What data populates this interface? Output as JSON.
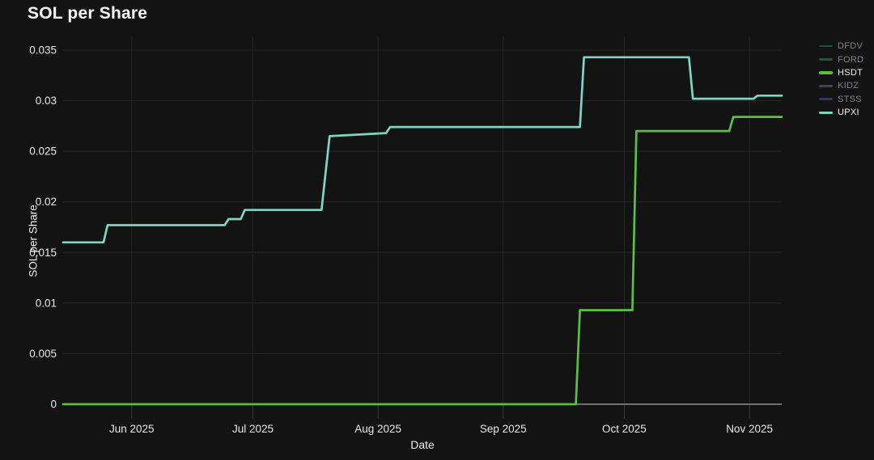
{
  "title": "SOL per Share",
  "axes": {
    "y_title": "SOL per Share",
    "x_title": "Date",
    "y_ticks": [
      {
        "value": 0,
        "label": "0"
      },
      {
        "value": 0.005,
        "label": "0.005"
      },
      {
        "value": 0.01,
        "label": "0.01"
      },
      {
        "value": 0.015,
        "label": "0.015"
      },
      {
        "value": 0.02,
        "label": "0.02"
      },
      {
        "value": 0.025,
        "label": "0.025"
      },
      {
        "value": 0.03,
        "label": "0.03"
      },
      {
        "value": 0.035,
        "label": "0.035"
      }
    ],
    "x_ticks": [
      {
        "date": "2025-06-01",
        "label": "Jun 2025"
      },
      {
        "date": "2025-07-01",
        "label": "Jul 2025"
      },
      {
        "date": "2025-08-01",
        "label": "Aug 2025"
      },
      {
        "date": "2025-09-01",
        "label": "Sep 2025"
      },
      {
        "date": "2025-10-01",
        "label": "Oct 2025"
      },
      {
        "date": "2025-11-01",
        "label": "Nov 2025"
      }
    ]
  },
  "chart_data": {
    "type": "line",
    "title": "SOL per Share",
    "xlabel": "Date",
    "ylabel": "SOL per Share",
    "x_range": [
      "2025-05-15",
      "2025-11-09"
    ],
    "ylim": [
      0,
      0.035
    ],
    "grid": true,
    "legend_position": "top-right",
    "series": [
      {
        "name": "HSDT",
        "color": "#5abf43",
        "visible": true,
        "points": [
          [
            "2025-05-15",
            0
          ],
          [
            "2025-09-19",
            0
          ],
          [
            "2025-09-20",
            0.0093
          ],
          [
            "2025-10-03",
            0.0093
          ],
          [
            "2025-10-04",
            0.027
          ],
          [
            "2025-10-27",
            0.027
          ],
          [
            "2025-10-28",
            0.0284
          ],
          [
            "2025-11-09",
            0.0284
          ]
        ]
      },
      {
        "name": "UPXI",
        "color": "#7fd4c2",
        "visible": true,
        "points": [
          [
            "2025-05-15",
            0.016
          ],
          [
            "2025-05-25",
            0.016
          ],
          [
            "2025-05-26",
            0.0177
          ],
          [
            "2025-06-24",
            0.0177
          ],
          [
            "2025-06-25",
            0.0183
          ],
          [
            "2025-06-28",
            0.0183
          ],
          [
            "2025-06-29",
            0.0192
          ],
          [
            "2025-07-18",
            0.0192
          ],
          [
            "2025-07-20",
            0.0265
          ],
          [
            "2025-08-03",
            0.0268
          ],
          [
            "2025-08-04",
            0.0274
          ],
          [
            "2025-09-20",
            0.0274
          ],
          [
            "2025-09-21",
            0.0343
          ],
          [
            "2025-10-17",
            0.0343
          ],
          [
            "2025-10-18",
            0.0302
          ],
          [
            "2025-11-02",
            0.0302
          ],
          [
            "2025-11-03",
            0.0305
          ],
          [
            "2025-11-09",
            0.0305
          ]
        ]
      }
    ]
  },
  "legend": {
    "items": [
      {
        "label": "DFDV",
        "color": "#3a7663",
        "active": false
      },
      {
        "label": "FORD",
        "color": "#4e8060",
        "active": false
      },
      {
        "label": "HSDT",
        "color": "#5abf43",
        "active": true
      },
      {
        "label": "KIDZ",
        "color": "#666e78",
        "active": false
      },
      {
        "label": "STSS",
        "color": "#4a54a8",
        "active": false
      },
      {
        "label": "UPXI",
        "color": "#7fd4c2",
        "active": true
      }
    ]
  },
  "colors": {
    "background": "#131313",
    "grid": "#262626",
    "tick_mark": "#3a3a3a",
    "zero_line": "#8d8d8d",
    "tick_text": "#e8e8e8",
    "dim_text": "#7f8387",
    "active_text": "#f4f4f4"
  }
}
